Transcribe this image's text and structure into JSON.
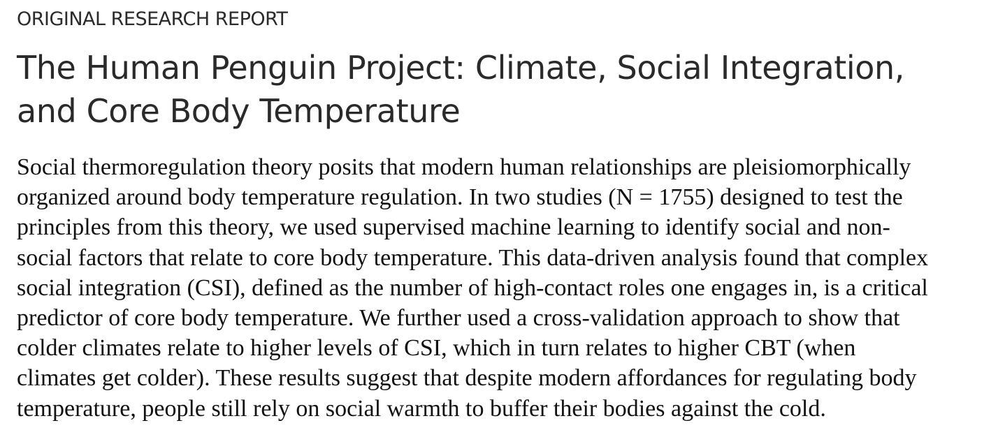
{
  "article": {
    "report_label": "ORIGINAL RESEARCH REPORT",
    "title_lines": [
      "The Human Penguin Project: Climate, Social Integration,",
      "and Core Body Temperature"
    ],
    "abstract_lines": [
      "Social thermoregulation theory posits that modern human relationships are pleisiomorphically",
      "organized around body temperature regulation. In two studies (N = 1755) designed to test the",
      "principles from this theory, we used supervised machine learning to identify social and non-",
      "social factors that relate to core body temperature. This data-driven analysis found that complex",
      "social integration (CSI), defined as the number of high-contact roles one engages in, is a critical",
      "predictor of core body temperature. We further used a cross-validation approach to show that",
      "colder climates relate to higher levels of CSI, which in turn relates to higher CBT (when",
      "climates get colder). These results suggest that despite modern affordances for regulating body",
      "temperature, people still rely on social warmth to buffer their bodies against the cold."
    ]
  }
}
